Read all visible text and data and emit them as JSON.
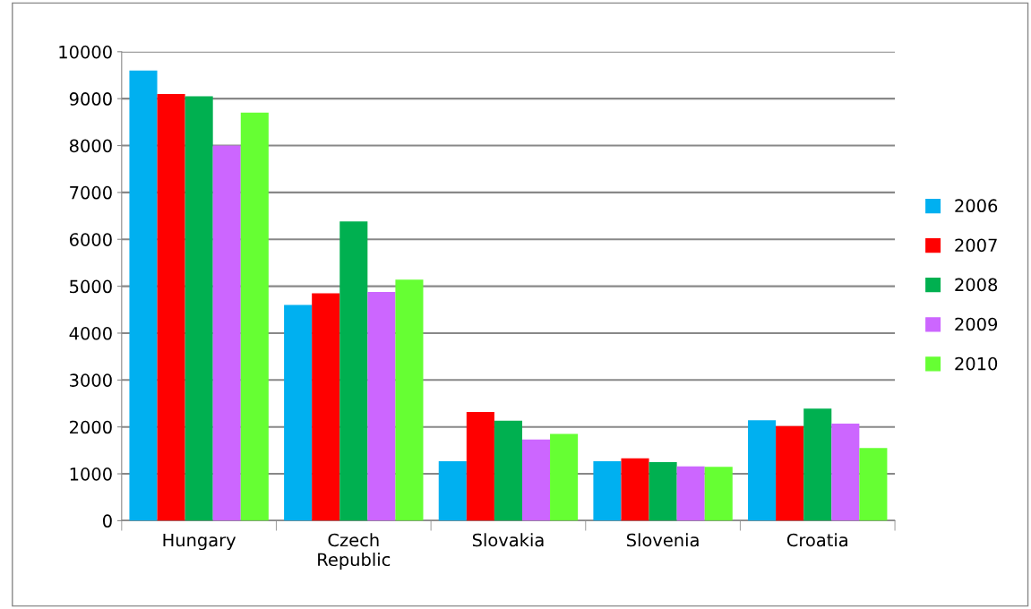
{
  "chart_data": {
    "type": "bar",
    "categories": [
      "Hungary",
      "Czech Republic",
      "Slovakia",
      "Slovenia",
      "Croatia"
    ],
    "series": [
      {
        "name": "2006",
        "color": "#00b0f0",
        "values": [
          9600,
          4600,
          1270,
          1270,
          2140
        ]
      },
      {
        "name": "2007",
        "color": "#ff0000",
        "values": [
          9100,
          4850,
          2320,
          1330,
          2020
        ]
      },
      {
        "name": "2008",
        "color": "#00b050",
        "values": [
          9050,
          6380,
          2130,
          1250,
          2390
        ]
      },
      {
        "name": "2009",
        "color": "#cc66ff",
        "values": [
          8000,
          4880,
          1730,
          1160,
          2070
        ]
      },
      {
        "name": "2010",
        "color": "#66ff33",
        "values": [
          8700,
          5140,
          1850,
          1150,
          1550
        ]
      }
    ],
    "ylim": [
      0,
      10000
    ],
    "yticks": [
      0,
      1000,
      2000,
      3000,
      4000,
      5000,
      6000,
      7000,
      8000,
      9000,
      10000
    ],
    "grid": "y",
    "legend": "right"
  }
}
